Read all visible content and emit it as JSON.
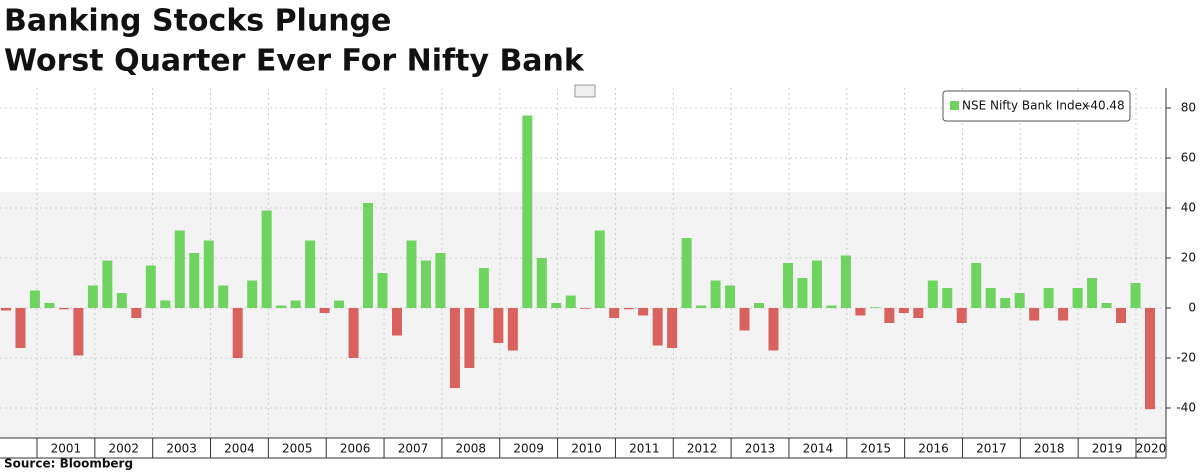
{
  "chart_data": {
    "type": "bar",
    "title": "Banking Stocks Plunge",
    "subtitle": "Worst Quarter Ever For Nifty Bank",
    "source": "Source: Bloomberg",
    "series": [
      {
        "name": "NSE Nifty Bank Index",
        "last_value": -40.48,
        "values": [
          -1,
          -16,
          7,
          2,
          -0.5,
          -19,
          9,
          19,
          6,
          -4,
          17,
          3,
          31,
          22,
          27,
          9,
          -20,
          11,
          39,
          1,
          3,
          27,
          -2,
          3,
          -20,
          42,
          14,
          -11,
          27,
          19,
          22,
          -32,
          -24,
          16,
          -14,
          -17,
          77,
          20,
          2,
          5,
          -0.3,
          31,
          -4,
          -0.5,
          -3,
          -15,
          -16,
          28,
          1,
          11,
          9,
          -9,
          2,
          -17,
          18,
          12,
          19,
          1,
          21,
          -3,
          0.3,
          -6,
          -2,
          -4,
          11,
          8,
          -6,
          18,
          8,
          4,
          6,
          -5,
          8,
          -5,
          8,
          12,
          2,
          -6,
          10,
          -40.48
        ]
      }
    ],
    "colors": {
      "positive": "#6fd45f",
      "negative": "#d9625f"
    },
    "x_labels": [
      "2001",
      "2002",
      "2003",
      "2004",
      "2005",
      "2006",
      "2007",
      "2008",
      "2009",
      "2010",
      "2011",
      "2012",
      "2013",
      "2014",
      "2015",
      "2016",
      "2017",
      "2018",
      "2019",
      "2020"
    ],
    "ylim": [
      -52,
      88
    ],
    "yticks": [
      -40,
      -20,
      0,
      20,
      40,
      60,
      80
    ],
    "grid": true
  }
}
